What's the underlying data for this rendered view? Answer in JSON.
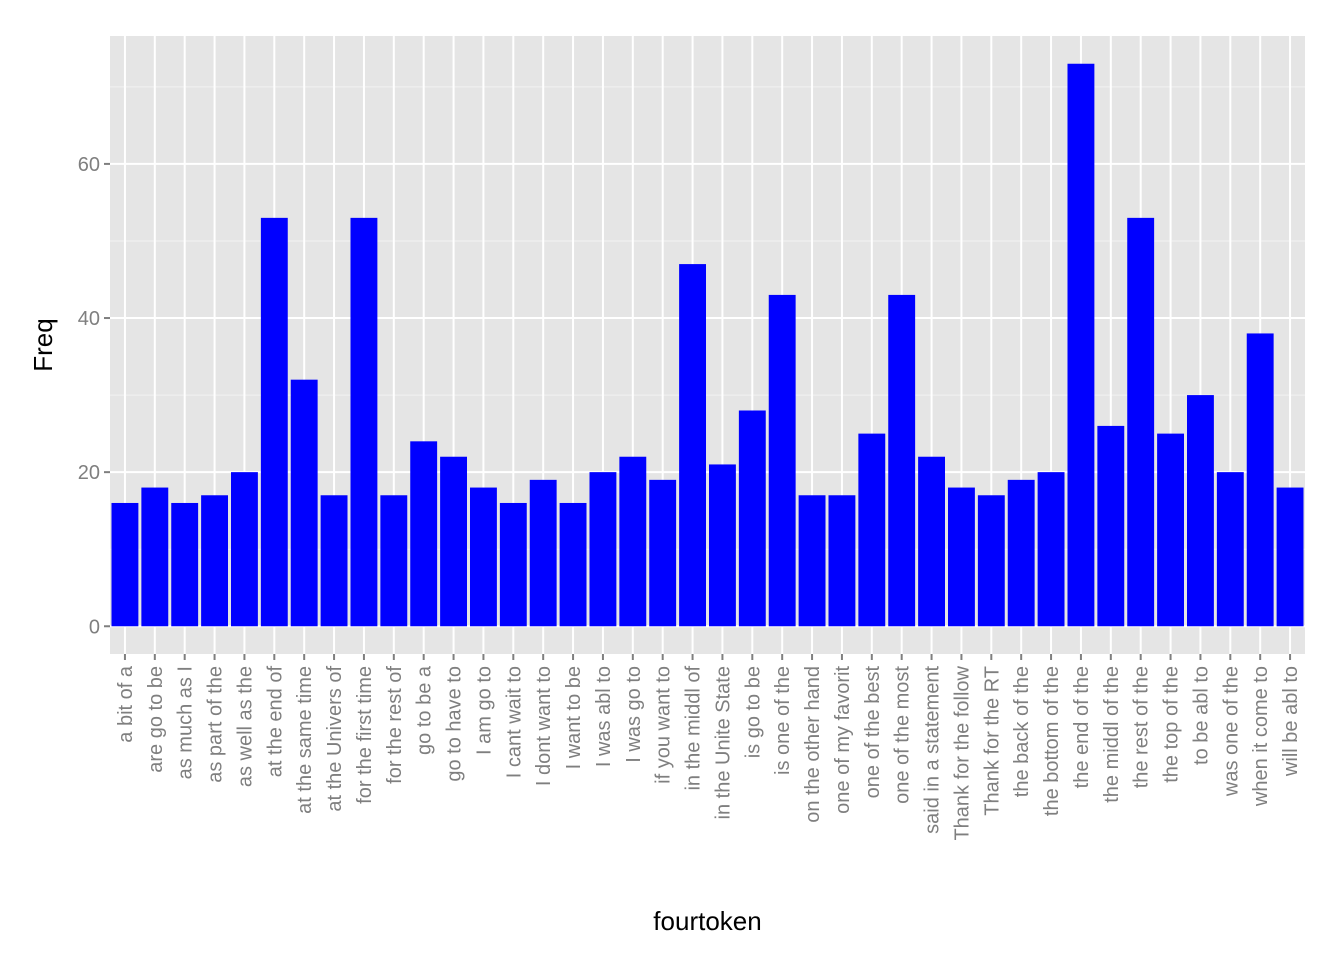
{
  "chart_data": {
    "type": "bar",
    "title": "",
    "xlabel": "fourtoken",
    "ylabel": "Freq",
    "ylim": [
      -3.6,
      76.6
    ],
    "yticks": [
      0,
      20,
      40,
      60
    ],
    "grid": true,
    "legend": "none",
    "colors": {
      "bar": "#0000ff",
      "panel": "#e5e5e5",
      "grid": "#ffffff",
      "tick_text": "#7f7f7f"
    },
    "categories": [
      "a bit of a",
      "are go to be",
      "as much as I",
      "as part of the",
      "as well as the",
      "at the end of",
      "at the same time",
      "at the Univers of",
      "for the first time",
      "for the rest of",
      "go to be a",
      "go to have to",
      "I am go to",
      "I cant wait to",
      "I dont want to",
      "I want to be",
      "I was abl to",
      "I was go to",
      "if you want to",
      "in the middl of",
      "in the Unite State",
      "is go to be",
      "is one of the",
      "on the other hand",
      "one of my favorit",
      "one of the best",
      "one of the most",
      "said in a statement",
      "Thank for the follow",
      "Thank for the RT",
      "the back of the",
      "the bottom of the",
      "the end of the",
      "the middl of the",
      "the rest of the",
      "the top of the",
      "to be abl to",
      "was one of the",
      "when it come to",
      "will be abl to"
    ],
    "values": [
      16,
      18,
      16,
      17,
      20,
      53,
      32,
      17,
      53,
      17,
      24,
      22,
      18,
      16,
      19,
      16,
      20,
      22,
      19,
      47,
      21,
      28,
      43,
      17,
      17,
      25,
      43,
      22,
      18,
      17,
      19,
      20,
      73,
      26,
      53,
      25,
      30,
      20,
      38,
      18
    ]
  }
}
